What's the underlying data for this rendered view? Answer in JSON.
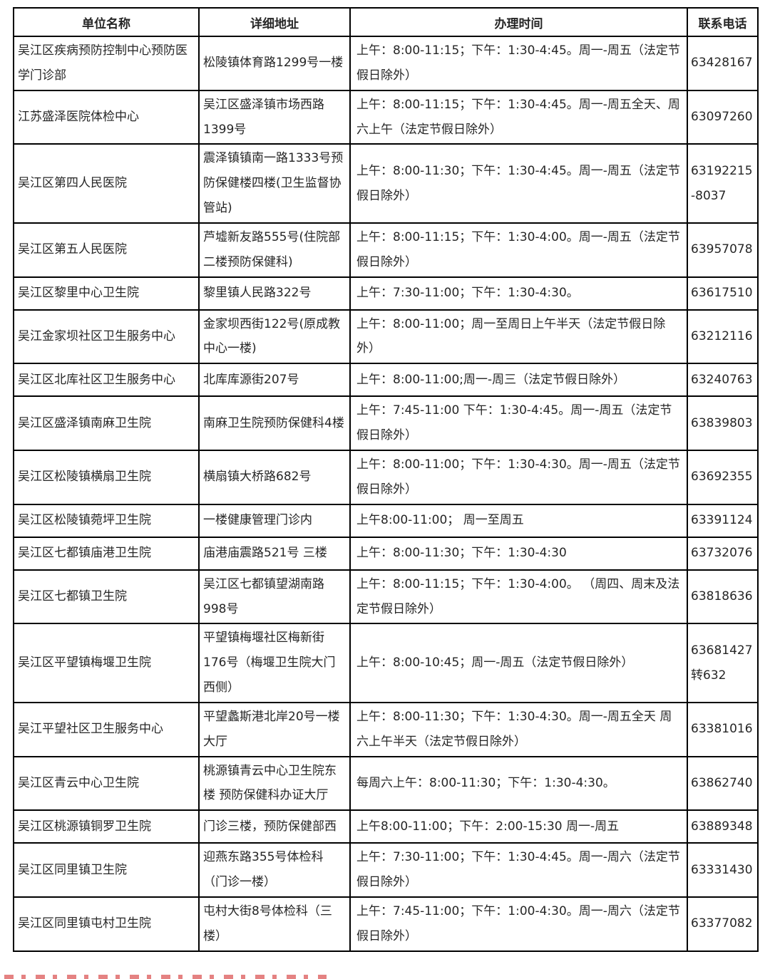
{
  "header": {
    "columns": [
      "单位名称",
      "详细地址",
      "办理时间",
      "联系电话"
    ]
  },
  "rows": [
    {
      "name": "吴江区疾病预防控制中心预防医学门诊部",
      "address": "松陵镇体育路1299号一楼",
      "time": "上午：8:00-11:15；下午：1:30-4:45。周一-周五（法定节假日除外）",
      "phone": "63428167"
    },
    {
      "name": "江苏盛泽医院体检中心",
      "address": "吴江区盛泽镇市场西路1399号",
      "time": "上午：8:00-11:15；下午：1:30-4:45。周一-周五全天、周六上午（法定节假日除外）",
      "phone": "63097260"
    },
    {
      "name": "吴江区第四人民医院",
      "address": "震泽镇镇南一路1333号预防保健楼四楼(卫生监督协管站)",
      "time": "上午：8:00-11:30；下午：1:30-4:45。周一-周五（法定节假日除外）",
      "phone": "63192215-8037"
    },
    {
      "name": "吴江区第五人民医院",
      "address": "芦墟新友路555号(住院部二楼预防保健科)",
      "time": "上午：8:00-11:15；下午：1:30-4:00。周一-周五（法定节假日除外）",
      "phone": "63957078"
    },
    {
      "name": "吴江区黎里中心卫生院",
      "address": "黎里镇人民路322号",
      "time": "上午：7:30-11:00；下午：1:30-4:30。",
      "phone": "63617510"
    },
    {
      "name": "吴江金家坝社区卫生服务中心",
      "address": "金家坝西街122号(原成教中心一楼)",
      "time": "上午：8:00-11:00；周一至周日上午半天（法定节假日除外）",
      "phone": "63212116"
    },
    {
      "name": "吴江区北库社区卫生服务中心",
      "address": " 北库库源街207号",
      "time": "上午：8:00-11:00;周一-周三（法定节假日除外）",
      "phone": "63240763"
    },
    {
      "name": "吴江区盛泽镇南麻卫生院",
      "address": "南麻卫生院预防保健科4楼",
      "time": "上午：7:45-11:00 下午：1:30-4:45。周一-周五（法定节假日除外）",
      "phone": "63839803"
    },
    {
      "name": "吴江区松陵镇横扇卫生院",
      "address": "  横扇镇大桥路682号",
      "time": "上午：8:00-11:00；下午：1:30-4:30。周一-周五（法定节假日除外）",
      "phone": "63692355"
    },
    {
      "name": "吴江区松陵镇菀坪卫生院",
      "address": "一楼健康管理门诊内",
      "time": "上午8:00-11:00；  周一至周五",
      "phone": "63391124"
    },
    {
      "name": "吴江区七都镇庙港卫生院",
      "address": "庙港庙震路521号 三楼",
      "time": "上午：8:00-11:30；下午：1:30-4:30",
      "phone": "63732076"
    },
    {
      "name": "吴江区七都镇卫生院",
      "address": "吴江区七都镇望湖南路998号",
      "time": "上午：8:00-11:15；下午：1:30-4:00。 （周四、周末及法定节假日除外）",
      "phone": "63818636"
    },
    {
      "name": "吴江区平望镇梅堰卫生院",
      "address": "平望镇梅堰社区梅新街176号（梅堰卫生院大门西侧）",
      "time": "上午：8:00-10:45；周一-周五（法定节假日除外）",
      "phone": "63681427转632"
    },
    {
      "name": "吴江平望社区卫生服务中心",
      "address": "平望蠡斯港北岸20号一楼大厅",
      "time": "上午：8:00-11:30；下午：1:30-4:30。周一-周五全天 周六上午半天（法定节假日除外）",
      "phone": "63381016"
    },
    {
      "name": "吴江区青云中心卫生院",
      "address": "桃源镇青云中心卫生院东楼 预防保健科办证大厅",
      "time": "每周六上午：8:00-11:30；下午：1:30-4:30。",
      "phone": "63862740"
    },
    {
      "name": "吴江区桃源镇铜罗卫生院",
      "address": "门诊三楼，预防保健部西",
      "time": "上午8:00-11:00；下午：2:00-15:30 周一-周五",
      "phone": "63889348"
    },
    {
      "name": "吴江区同里镇卫生院",
      "address": "迎燕东路355号体检科 （门诊一楼）",
      "time": "上午：7:30-11:00；下午：1:30-4:45。周一-周六（法定节假日除外）",
      "phone": "63331430"
    },
    {
      "name": "吴江区同里镇屯村卫生院",
      "address": "屯村大街8号体检科（三楼）",
      "time": "上午：7:45-11:00；下午：1:00-4:30。周一-周六（法定节假日除外）",
      "phone": "63377082"
    }
  ]
}
